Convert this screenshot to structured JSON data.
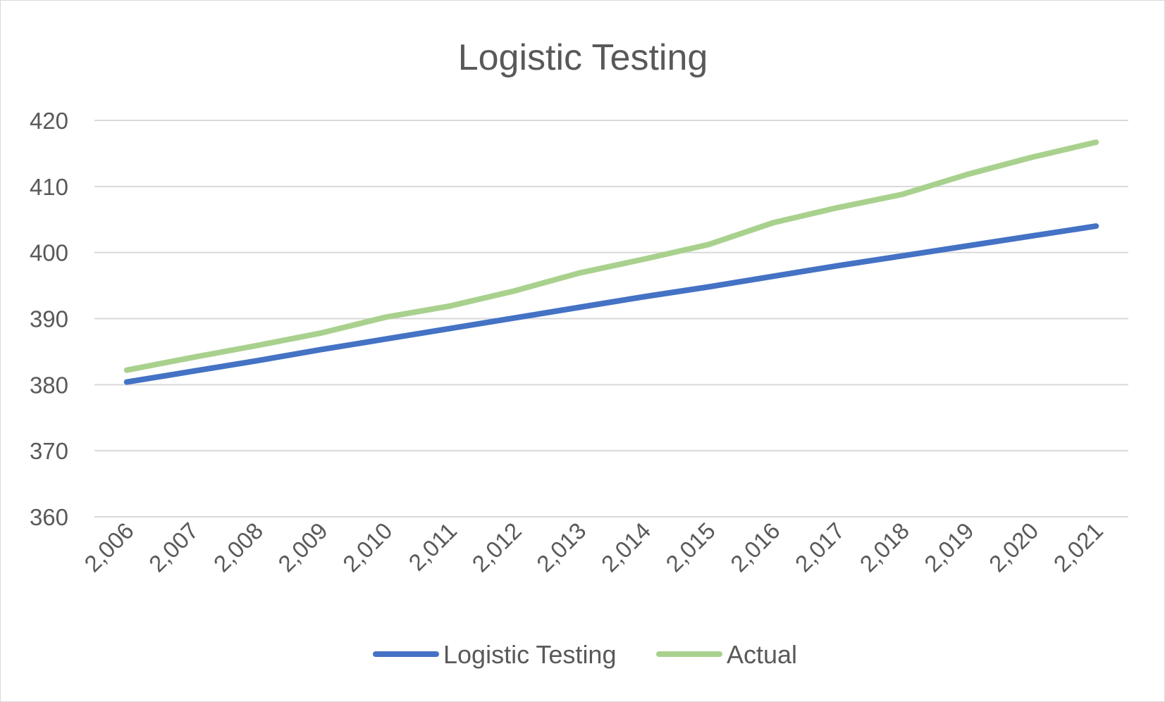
{
  "chart_data": {
    "type": "line",
    "title": "Logistic Testing",
    "xlabel": "",
    "ylabel": "",
    "categories": [
      "2,006",
      "2,007",
      "2,008",
      "2,009",
      "2,010",
      "2,011",
      "2,012",
      "2,013",
      "2,014",
      "2,015",
      "2,016",
      "2,017",
      "2,018",
      "2,019",
      "2,020",
      "2,021"
    ],
    "y_ticks": [
      "360",
      "370",
      "380",
      "390",
      "400",
      "410",
      "420"
    ],
    "ylim": [
      360,
      420
    ],
    "grid": true,
    "legend_position": "bottom",
    "series": [
      {
        "name": "Logistic Testing",
        "color": "#4472c4",
        "values": [
          380.4,
          382.0,
          383.6,
          385.3,
          386.9,
          388.5,
          390.1,
          391.7,
          393.3,
          394.8,
          396.4,
          398.0,
          399.5,
          401.0,
          402.5,
          404.0
        ]
      },
      {
        "name": "Actual",
        "color": "#a9d18e",
        "values": [
          382.2,
          384.1,
          385.9,
          387.8,
          390.2,
          391.9,
          394.2,
          396.9,
          399.0,
          401.2,
          404.5,
          406.8,
          408.8,
          411.8,
          414.4,
          416.7
        ]
      }
    ]
  }
}
